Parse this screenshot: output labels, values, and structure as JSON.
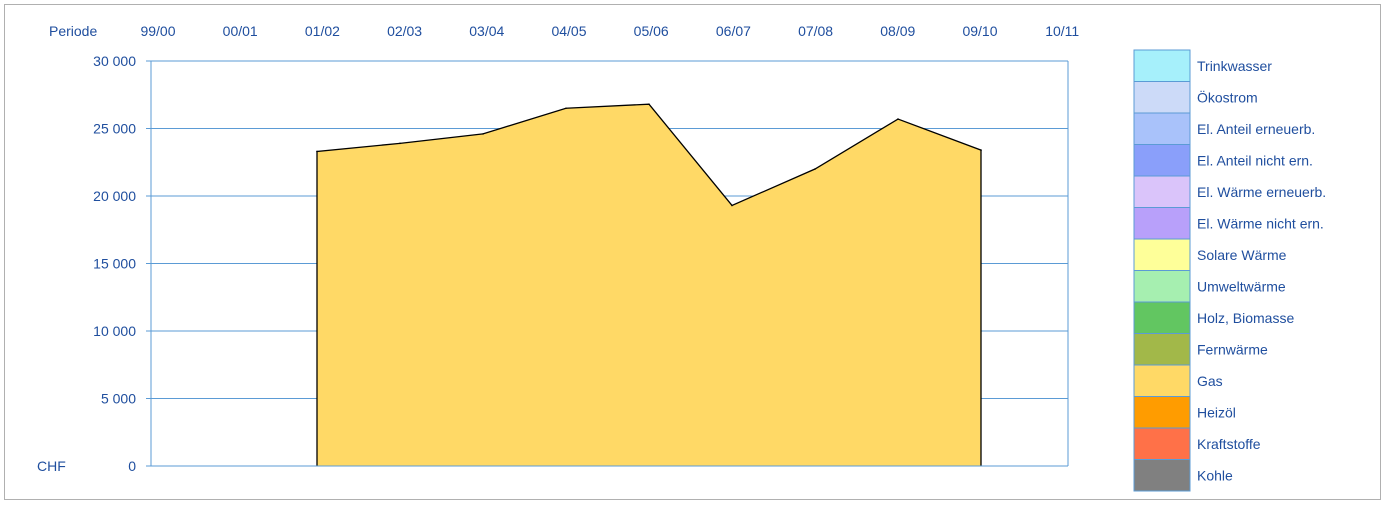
{
  "chart_data": {
    "type": "area",
    "period_label": "Periode",
    "unit_label": "CHF",
    "categories": [
      "99/00",
      "00/01",
      "01/02",
      "02/03",
      "03/04",
      "04/05",
      "05/06",
      "06/07",
      "07/08",
      "08/09",
      "09/10",
      "10/11"
    ],
    "y_ticks": [
      "30 000",
      "25 000",
      "20 000",
      "15 000",
      "10 000",
      "5 000",
      "0"
    ],
    "ylim": [
      0,
      30000
    ],
    "grid": true,
    "legend_position": "right",
    "series": [
      {
        "name": "Gas",
        "color": "#ffd966",
        "values": [
          null,
          null,
          23300,
          23900,
          24600,
          26500,
          26800,
          19300,
          22000,
          25700,
          23400,
          null
        ]
      }
    ],
    "legend": [
      {
        "label": "Trinkwasser",
        "color": "#a6f0fb"
      },
      {
        "label": "Ökostrom",
        "color": "#ccdaf8"
      },
      {
        "label": "El. Anteil erneuerb.",
        "color": "#a9c2fa"
      },
      {
        "label": "El. Anteil nicht ern.",
        "color": "#8a9ffa"
      },
      {
        "label": "El. Wärme erneuerb.",
        "color": "#dac4fa"
      },
      {
        "label": "El. Wärme nicht ern.",
        "color": "#b8a0fa"
      },
      {
        "label": "Solare Wärme",
        "color": "#feff99"
      },
      {
        "label": "Umweltwärme",
        "color": "#a6efb0"
      },
      {
        "label": "Holz, Biomasse",
        "color": "#62c661"
      },
      {
        "label": "Fernwärme",
        "color": "#a2b849"
      },
      {
        "label": "Gas",
        "color": "#ffd966"
      },
      {
        "label": "Heizöl",
        "color": "#ff9c00"
      },
      {
        "label": "Kraftstoffe",
        "color": "#ff7148"
      },
      {
        "label": "Kohle",
        "color": "#808080"
      }
    ]
  }
}
